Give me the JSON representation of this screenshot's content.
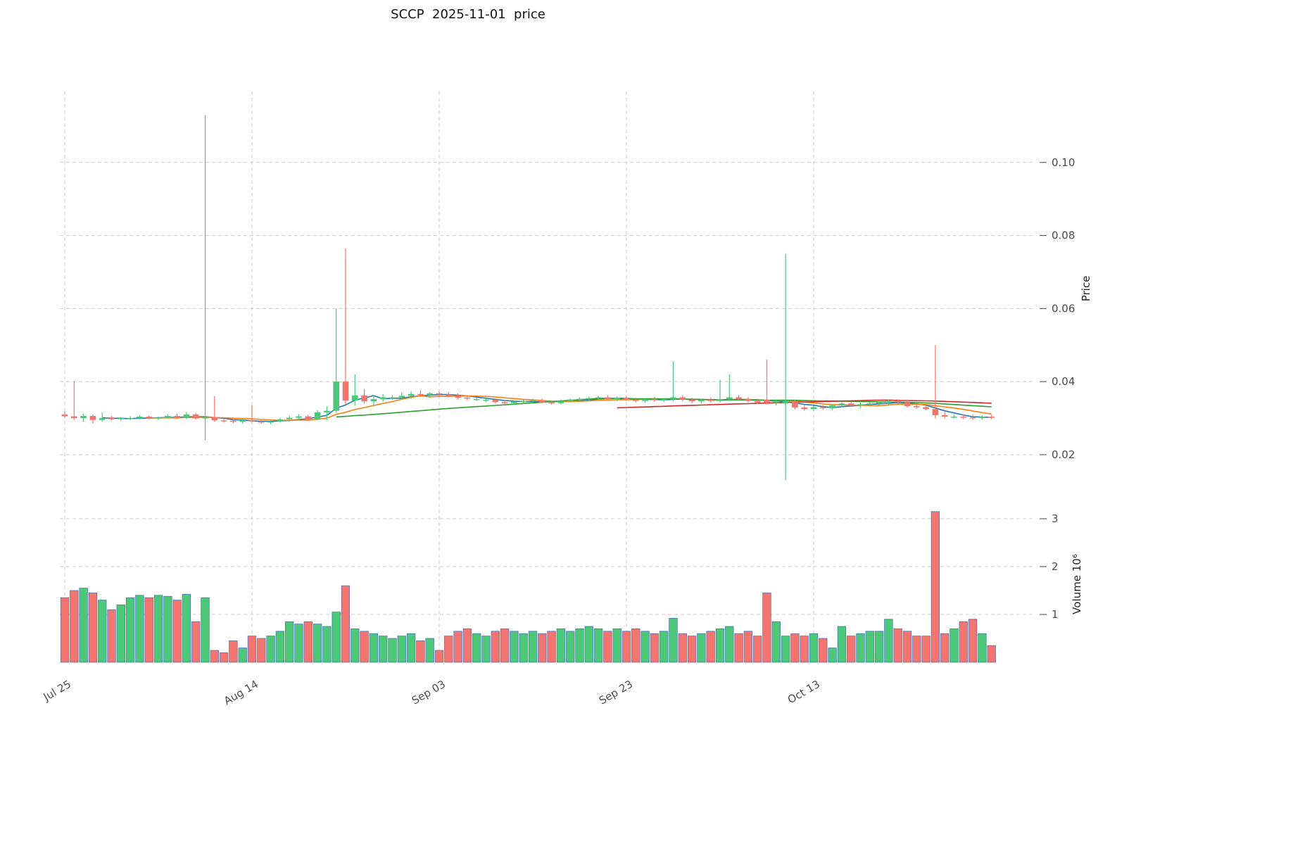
{
  "title": "SCCP  2025-11-01  price",
  "chart_data": {
    "type": "candlestick+volume",
    "title": "SCCP  2025-11-01  price",
    "x_tick_labels": [
      "Jul 25",
      "Aug 14",
      "Sep 03",
      "Sep 23",
      "Oct 13"
    ],
    "x_tick_indices": [
      0,
      20,
      40,
      60,
      80
    ],
    "price_axis": {
      "label": "Price",
      "ticks": [
        0.02,
        0.04,
        0.06,
        0.08,
        0.1
      ],
      "tick_labels": [
        "0.02",
        "0.04",
        "0.06",
        "0.08",
        "0.10"
      ],
      "ylim": [
        0.0114,
        0.1194
      ]
    },
    "volume_axis": {
      "label": "Volume  10⁶",
      "ticks": [
        1,
        2,
        3
      ],
      "tick_labels": [
        "1",
        "2",
        "3"
      ],
      "ylim": [
        0,
        3.35
      ]
    },
    "legend": "none",
    "grid": "dashed",
    "colors": {
      "up": "#4dc878",
      "down": "#f2766f",
      "volume_edge": "#3f6fb5",
      "grid": "#cccccc",
      "text": "#4d4d4d",
      "title": "#111111"
    },
    "moving_averages": [
      {
        "name": "mav5",
        "window": 5,
        "color": "#1f77b4"
      },
      {
        "name": "mav10",
        "window": 10,
        "color": "#ff7f0e"
      },
      {
        "name": "mav30",
        "window": 30,
        "color": "#2ca02c"
      },
      {
        "name": "mav60",
        "window": 60,
        "color": "#d62728"
      }
    ],
    "dates": [
      "2025-07-25",
      "2025-07-26",
      "2025-07-27",
      "2025-07-28",
      "2025-07-29",
      "2025-07-30",
      "2025-07-31",
      "2025-08-01",
      "2025-08-02",
      "2025-08-03",
      "2025-08-04",
      "2025-08-05",
      "2025-08-06",
      "2025-08-07",
      "2025-08-08",
      "2025-08-09",
      "2025-08-10",
      "2025-08-11",
      "2025-08-12",
      "2025-08-13",
      "2025-08-14",
      "2025-08-15",
      "2025-08-16",
      "2025-08-17",
      "2025-08-18",
      "2025-08-19",
      "2025-08-20",
      "2025-08-21",
      "2025-08-22",
      "2025-08-23",
      "2025-08-24",
      "2025-08-25",
      "2025-08-26",
      "2025-08-27",
      "2025-08-28",
      "2025-08-29",
      "2025-08-30",
      "2025-08-31",
      "2025-09-01",
      "2025-09-02",
      "2025-09-03",
      "2025-09-04",
      "2025-09-05",
      "2025-09-06",
      "2025-09-07",
      "2025-09-08",
      "2025-09-09",
      "2025-09-10",
      "2025-09-11",
      "2025-09-12",
      "2025-09-13",
      "2025-09-14",
      "2025-09-15",
      "2025-09-16",
      "2025-09-17",
      "2025-09-18",
      "2025-09-19",
      "2025-09-20",
      "2025-09-21",
      "2025-09-22",
      "2025-09-23",
      "2025-09-24",
      "2025-09-25",
      "2025-09-26",
      "2025-09-27",
      "2025-09-28",
      "2025-09-29",
      "2025-09-30",
      "2025-10-01",
      "2025-10-02",
      "2025-10-03",
      "2025-10-04",
      "2025-10-05",
      "2025-10-06",
      "2025-10-07",
      "2025-10-08",
      "2025-10-09",
      "2025-10-10",
      "2025-10-11",
      "2025-10-12",
      "2025-10-13",
      "2025-10-14",
      "2025-10-15",
      "2025-10-16",
      "2025-10-17",
      "2025-10-18",
      "2025-10-19",
      "2025-10-20",
      "2025-10-21",
      "2025-10-22",
      "2025-10-23",
      "2025-10-24",
      "2025-10-25",
      "2025-10-26",
      "2025-10-27",
      "2025-10-28",
      "2025-10-29",
      "2025-10-30",
      "2025-10-31",
      "2025-11-01"
    ],
    "ohlc": [
      [
        0.031,
        0.0318,
        0.03,
        0.0305
      ],
      [
        0.0305,
        0.04,
        0.0295,
        0.03
      ],
      [
        0.03,
        0.0312,
        0.029,
        0.0306
      ],
      [
        0.0306,
        0.031,
        0.0285,
        0.0295
      ],
      [
        0.0295,
        0.0316,
        0.029,
        0.03
      ],
      [
        0.03,
        0.0306,
        0.0294,
        0.0297
      ],
      [
        0.0297,
        0.0303,
        0.0292,
        0.03
      ],
      [
        0.03,
        0.0305,
        0.0295,
        0.03
      ],
      [
        0.03,
        0.0308,
        0.0296,
        0.0304
      ],
      [
        0.0304,
        0.0307,
        0.0297,
        0.0299
      ],
      [
        0.0299,
        0.0304,
        0.0295,
        0.0302
      ],
      [
        0.0302,
        0.0311,
        0.0298,
        0.0306
      ],
      [
        0.0306,
        0.0312,
        0.0299,
        0.0301
      ],
      [
        0.0301,
        0.0317,
        0.0297,
        0.031
      ],
      [
        0.031,
        0.0314,
        0.0296,
        0.0299
      ],
      [
        0.0299,
        0.113,
        0.024,
        0.0303
      ],
      [
        0.0303,
        0.036,
        0.029,
        0.0294
      ],
      [
        0.0294,
        0.0298,
        0.0288,
        0.0293
      ],
      [
        0.0293,
        0.0297,
        0.0286,
        0.029
      ],
      [
        0.029,
        0.0299,
        0.0285,
        0.0295
      ],
      [
        0.0295,
        0.0335,
        0.0288,
        0.0291
      ],
      [
        0.0291,
        0.0295,
        0.0285,
        0.0288
      ],
      [
        0.0288,
        0.0295,
        0.0283,
        0.0291
      ],
      [
        0.0291,
        0.0301,
        0.0288,
        0.0297
      ],
      [
        0.0297,
        0.0307,
        0.0291,
        0.0301
      ],
      [
        0.0301,
        0.0311,
        0.0295,
        0.0305
      ],
      [
        0.0305,
        0.0309,
        0.0292,
        0.0296
      ],
      [
        0.0296,
        0.0322,
        0.0294,
        0.0316
      ],
      [
        0.0316,
        0.0332,
        0.0295,
        0.032
      ],
      [
        0.032,
        0.06,
        0.0315,
        0.04
      ],
      [
        0.04,
        0.0765,
        0.0338,
        0.0348
      ],
      [
        0.0348,
        0.042,
        0.0335,
        0.0362
      ],
      [
        0.0362,
        0.038,
        0.034,
        0.0346
      ],
      [
        0.0346,
        0.0362,
        0.0332,
        0.0352
      ],
      [
        0.0352,
        0.0366,
        0.0345,
        0.0357
      ],
      [
        0.0357,
        0.0363,
        0.035,
        0.0357
      ],
      [
        0.0357,
        0.0371,
        0.0351,
        0.0361
      ],
      [
        0.0361,
        0.0373,
        0.0353,
        0.0366
      ],
      [
        0.0366,
        0.0376,
        0.0358,
        0.0363
      ],
      [
        0.0363,
        0.0371,
        0.0356,
        0.0368
      ],
      [
        0.0368,
        0.0373,
        0.0361,
        0.0365
      ],
      [
        0.0365,
        0.0371,
        0.0357,
        0.0361
      ],
      [
        0.0361,
        0.0368,
        0.0351,
        0.0356
      ],
      [
        0.0356,
        0.0362,
        0.0349,
        0.0354
      ],
      [
        0.0352,
        0.0357,
        0.0347,
        0.0352
      ],
      [
        0.035,
        0.0355,
        0.0344,
        0.035
      ],
      [
        0.035,
        0.0354,
        0.034,
        0.0344
      ],
      [
        0.0344,
        0.035,
        0.0337,
        0.0341
      ],
      [
        0.0341,
        0.0349,
        0.0336,
        0.0345
      ],
      [
        0.0345,
        0.0351,
        0.034,
        0.0347
      ],
      [
        0.0347,
        0.0353,
        0.0342,
        0.0349
      ],
      [
        0.0349,
        0.0353,
        0.034,
        0.0343
      ],
      [
        0.0343,
        0.0348,
        0.0337,
        0.0341
      ],
      [
        0.0341,
        0.0351,
        0.0338,
        0.0347
      ],
      [
        0.0347,
        0.0353,
        0.0342,
        0.0351
      ],
      [
        0.0351,
        0.0357,
        0.0345,
        0.0353
      ],
      [
        0.0353,
        0.0359,
        0.0347,
        0.0355
      ],
      [
        0.0355,
        0.0361,
        0.0349,
        0.0357
      ],
      [
        0.0357,
        0.0363,
        0.035,
        0.0352
      ],
      [
        0.0352,
        0.0359,
        0.0346,
        0.0356
      ],
      [
        0.0356,
        0.0361,
        0.0348,
        0.035
      ],
      [
        0.035,
        0.0356,
        0.0343,
        0.0347
      ],
      [
        0.0347,
        0.0355,
        0.0342,
        0.0352
      ],
      [
        0.0352,
        0.0358,
        0.0345,
        0.0349
      ],
      [
        0.0349,
        0.0355,
        0.0344,
        0.0352
      ],
      [
        0.0352,
        0.0455,
        0.0347,
        0.0357
      ],
      [
        0.0357,
        0.0363,
        0.0346,
        0.035
      ],
      [
        0.035,
        0.0356,
        0.0341,
        0.0346
      ],
      [
        0.0346,
        0.0353,
        0.034,
        0.035
      ],
      [
        0.035,
        0.0356,
        0.0343,
        0.0347
      ],
      [
        0.0347,
        0.0405,
        0.0343,
        0.0352
      ],
      [
        0.0352,
        0.042,
        0.0346,
        0.0357
      ],
      [
        0.0357,
        0.0363,
        0.0348,
        0.0352
      ],
      [
        0.0352,
        0.0358,
        0.0343,
        0.0347
      ],
      [
        0.0347,
        0.0353,
        0.0339,
        0.0343
      ],
      [
        0.035,
        0.046,
        0.0337,
        0.0342
      ],
      [
        0.0342,
        0.0351,
        0.0335,
        0.0347
      ],
      [
        0.034,
        0.075,
        0.013,
        0.0346
      ],
      [
        0.0346,
        0.0351,
        0.0324,
        0.0329
      ],
      [
        0.0329,
        0.0337,
        0.0321,
        0.0325
      ],
      [
        0.0325,
        0.0334,
        0.0319,
        0.033
      ],
      [
        0.033,
        0.0336,
        0.0323,
        0.0327
      ],
      [
        0.0327,
        0.0339,
        0.0323,
        0.0335
      ],
      [
        0.0335,
        0.0344,
        0.0329,
        0.034
      ],
      [
        0.034,
        0.0346,
        0.0331,
        0.0335
      ],
      [
        0.0335,
        0.0342,
        0.0329,
        0.0338
      ],
      [
        0.0338,
        0.0344,
        0.0332,
        0.034
      ],
      [
        0.034,
        0.0347,
        0.0334,
        0.0343
      ],
      [
        0.0343,
        0.0351,
        0.0337,
        0.0347
      ],
      [
        0.0347,
        0.0352,
        0.0339,
        0.0343
      ],
      [
        0.0343,
        0.0349,
        0.0329,
        0.0333
      ],
      [
        0.0333,
        0.034,
        0.0326,
        0.033
      ],
      [
        0.033,
        0.0336,
        0.0322,
        0.0325
      ],
      [
        0.0325,
        0.05,
        0.0299,
        0.0308
      ],
      [
        0.0308,
        0.0318,
        0.0299,
        0.0304
      ],
      [
        0.0304,
        0.031,
        0.0299,
        0.0304
      ],
      [
        0.0304,
        0.0311,
        0.0297,
        0.0302
      ],
      [
        0.0302,
        0.0309,
        0.0295,
        0.03
      ],
      [
        0.03,
        0.0307,
        0.0296,
        0.0304
      ],
      [
        0.0304,
        0.0309,
        0.0297,
        0.0301
      ]
    ],
    "volume_millions": [
      1.35,
      1.5,
      1.55,
      1.45,
      1.3,
      1.1,
      1.2,
      1.35,
      1.4,
      1.35,
      1.4,
      1.38,
      1.3,
      1.42,
      0.85,
      1.35,
      0.25,
      0.2,
      0.45,
      0.3,
      0.55,
      0.5,
      0.55,
      0.65,
      0.85,
      0.8,
      0.85,
      0.8,
      0.75,
      1.05,
      1.6,
      0.7,
      0.65,
      0.6,
      0.55,
      0.5,
      0.55,
      0.6,
      0.45,
      0.5,
      0.25,
      0.55,
      0.65,
      0.7,
      0.6,
      0.55,
      0.65,
      0.7,
      0.65,
      0.6,
      0.65,
      0.6,
      0.65,
      0.7,
      0.65,
      0.7,
      0.75,
      0.7,
      0.65,
      0.7,
      0.65,
      0.7,
      0.65,
      0.6,
      0.65,
      0.92,
      0.6,
      0.55,
      0.6,
      0.65,
      0.7,
      0.75,
      0.6,
      0.65,
      0.55,
      1.45,
      0.85,
      0.55,
      0.6,
      0.55,
      0.6,
      0.5,
      0.3,
      0.75,
      0.55,
      0.6,
      0.65,
      0.65,
      0.9,
      0.7,
      0.65,
      0.55,
      0.55,
      3.15,
      0.6,
      0.7,
      0.85,
      0.9,
      0.6,
      0.35
    ]
  }
}
